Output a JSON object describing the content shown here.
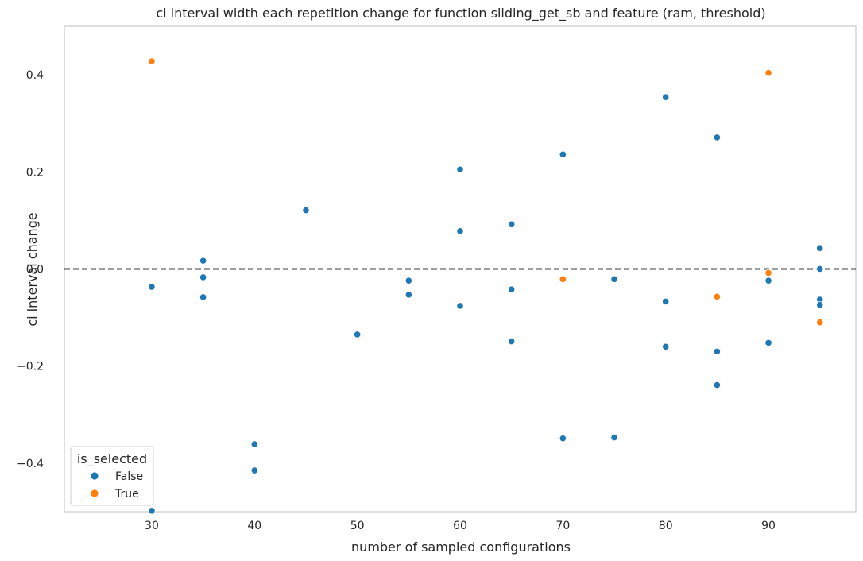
{
  "chart_data": {
    "type": "scatter",
    "title": "ci interval width each repetition change for function sliding_get_sb and feature (ram, threshold)",
    "xlabel": "number of sampled configurations",
    "ylabel": "ci interval change",
    "xlim": [
      21.5,
      98.5
    ],
    "ylim": [
      -0.5,
      0.5
    ],
    "xticks": [
      30,
      40,
      50,
      60,
      70,
      80,
      90
    ],
    "yticks": [
      -0.4,
      -0.2,
      0.0,
      0.2,
      0.4
    ],
    "ytick_labels": [
      "−0.4",
      "−0.2",
      "0.0",
      "0.2",
      "0.4"
    ],
    "grid": false,
    "reference_line": {
      "y": 0.0,
      "style": "dashed",
      "color": "#000000"
    },
    "legend": {
      "title": "is_selected",
      "placement": "lower-left"
    },
    "series": [
      {
        "name": "False",
        "color": "#1f77b4",
        "points": [
          [
            30,
            -0.037
          ],
          [
            30,
            -0.498
          ],
          [
            35,
            0.017
          ],
          [
            35,
            -0.017
          ],
          [
            35,
            -0.058
          ],
          [
            40,
            -0.361
          ],
          [
            40,
            -0.415
          ],
          [
            45,
            0.121
          ],
          [
            50,
            -0.135
          ],
          [
            55,
            -0.024
          ],
          [
            55,
            -0.053
          ],
          [
            60,
            0.205
          ],
          [
            60,
            0.078
          ],
          [
            60,
            -0.076
          ],
          [
            65,
            0.092
          ],
          [
            65,
            -0.042
          ],
          [
            65,
            -0.149
          ],
          [
            70,
            0.236
          ],
          [
            70,
            -0.349
          ],
          [
            75,
            -0.021
          ],
          [
            75,
            -0.347
          ],
          [
            80,
            0.354
          ],
          [
            80,
            -0.067
          ],
          [
            80,
            -0.16
          ],
          [
            85,
            0.271
          ],
          [
            85,
            -0.17
          ],
          [
            85,
            -0.239
          ],
          [
            90,
            -0.024
          ],
          [
            90,
            -0.152
          ],
          [
            95,
            0.043
          ],
          [
            95,
            0.0
          ],
          [
            95,
            -0.063
          ],
          [
            95,
            -0.074
          ]
        ]
      },
      {
        "name": "True",
        "color": "#ff7f0e",
        "points": [
          [
            30,
            0.428
          ],
          [
            70,
            -0.021
          ],
          [
            85,
            -0.057
          ],
          [
            90,
            0.404
          ],
          [
            90,
            -0.008
          ],
          [
            95,
            -0.11
          ]
        ]
      }
    ]
  }
}
